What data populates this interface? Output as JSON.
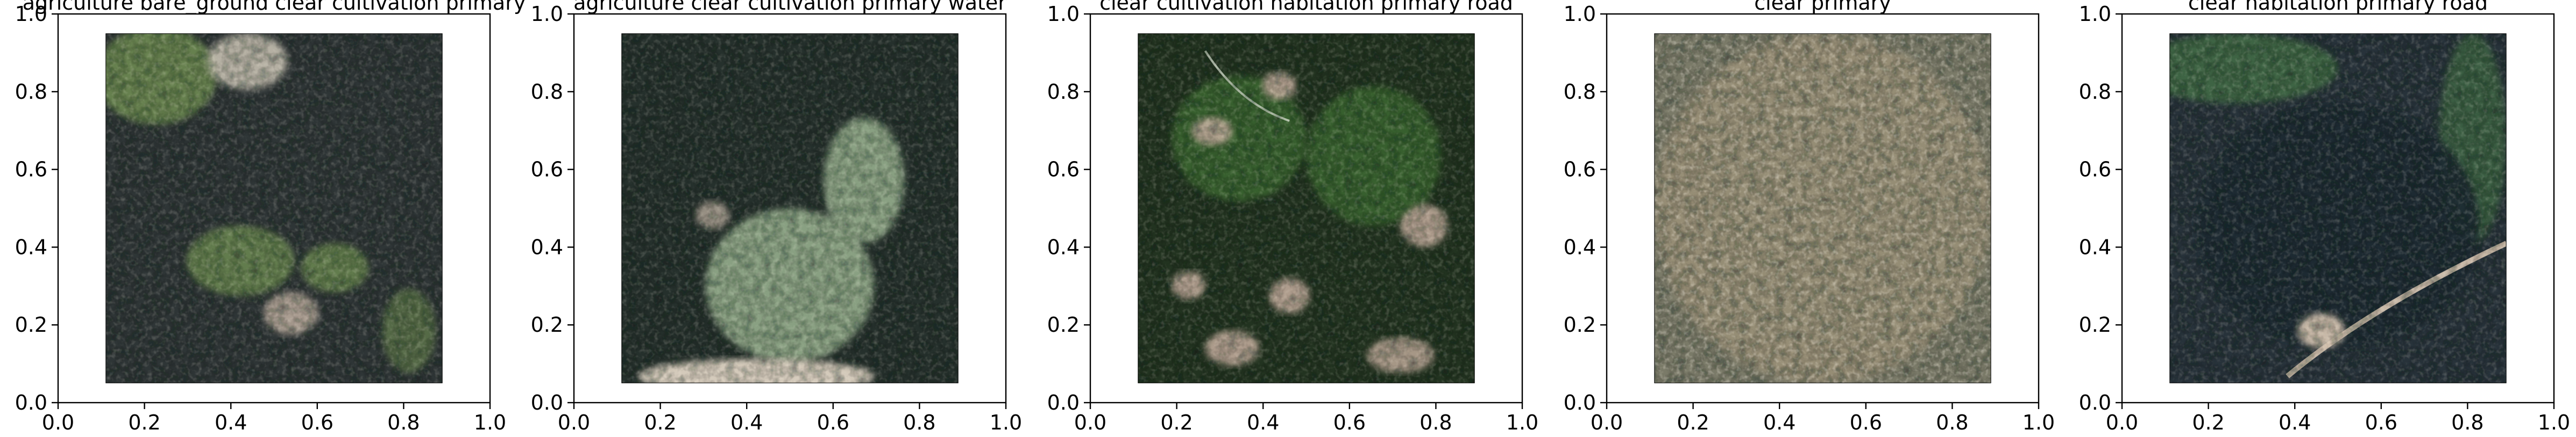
{
  "figure": {
    "panels": [
      {
        "title": "agriculture bare_ground clear cultivation primary",
        "scene": {
          "base": "#2e3536",
          "accent": "#6f8e52",
          "feature": "clearings-left-top-and-center"
        }
      },
      {
        "title": "agriculture clear cultivation primary water",
        "scene": {
          "base": "#25302c",
          "accent": "#8fa687",
          "feature": "large-pale-clearing-center"
        }
      },
      {
        "title": "clear cultivation habitation primary road",
        "scene": {
          "base": "#223320",
          "accent": "#c8b0a0",
          "feature": "scattered-clearings-and-road"
        }
      },
      {
        "title": "clear primary",
        "scene": {
          "base": "#7a7a68",
          "accent": "#a89a7f",
          "feature": "dense-textured-canopy"
        }
      },
      {
        "title": "clear habitation primary road",
        "scene": {
          "base": "#27323a",
          "accent": "#d9c7b3",
          "feature": "dark-forest-with-curved-road"
        }
      }
    ],
    "axes": {
      "xlim": [
        0,
        1
      ],
      "ylim": [
        0,
        1
      ],
      "xticks": [
        "0.0",
        "0.2",
        "0.4",
        "0.6",
        "0.8",
        "1.0"
      ],
      "yticks": [
        "0.0",
        "0.2",
        "0.4",
        "0.6",
        "0.8",
        "1.0"
      ]
    }
  }
}
